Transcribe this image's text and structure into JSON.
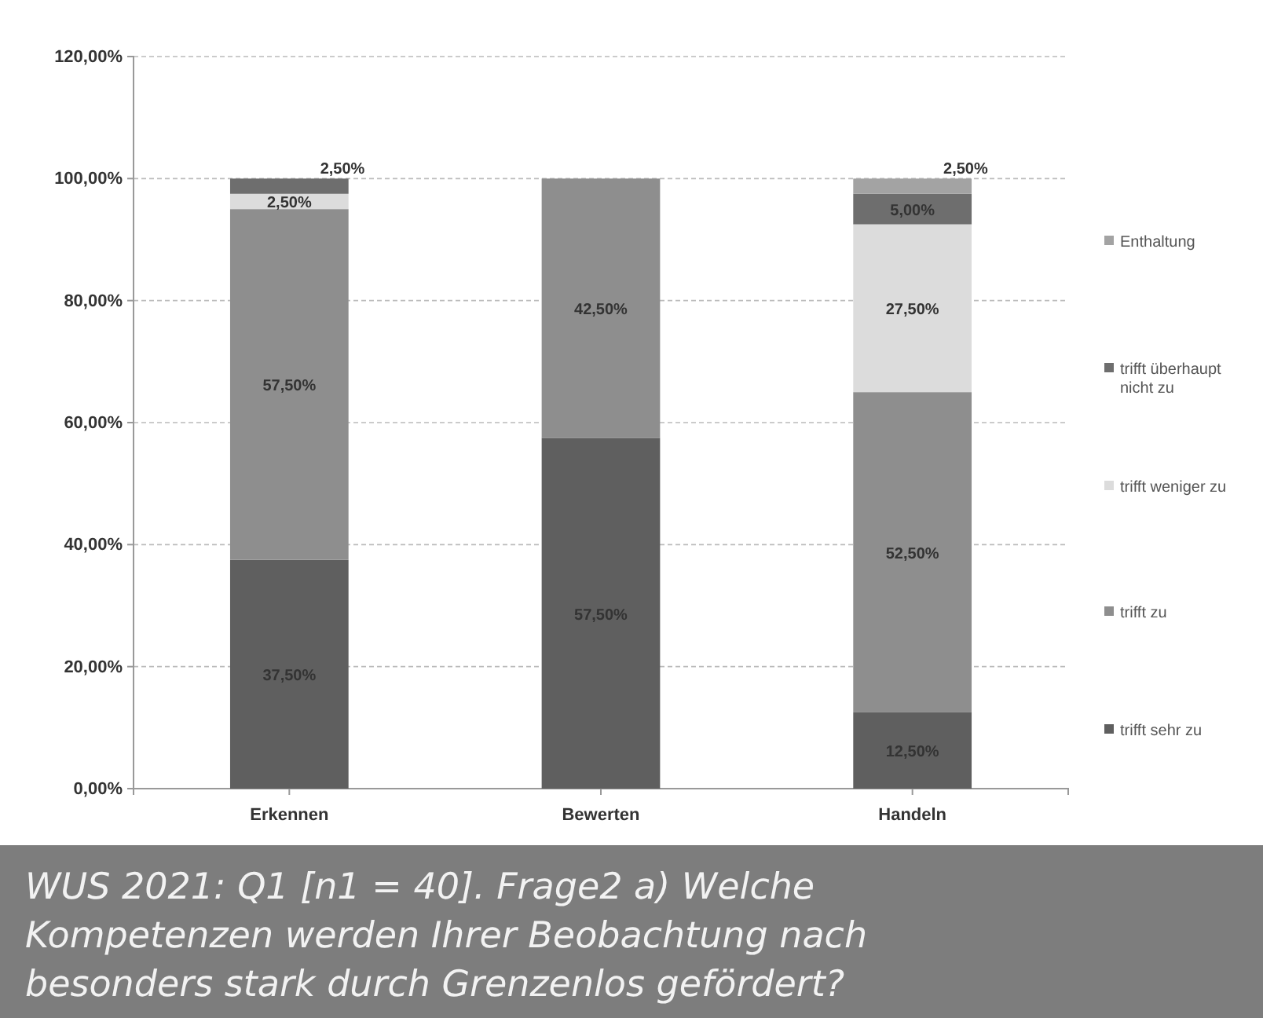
{
  "chart_data": {
    "type": "bar",
    "stacked": true,
    "categories": [
      "Erkennen",
      "Bewerten",
      "Handeln"
    ],
    "series": [
      {
        "name": "trifft sehr zu",
        "color": "#5f5f5f",
        "values": [
          37.5,
          57.5,
          12.5
        ],
        "value_labels": [
          "37,50%",
          "57,50%",
          "12,50%"
        ]
      },
      {
        "name": "trifft zu",
        "color": "#8e8e8e",
        "values": [
          57.5,
          42.5,
          52.5
        ],
        "value_labels": [
          "57,50%",
          "42,50%",
          "52,50%"
        ]
      },
      {
        "name": "trifft weniger zu",
        "color": "#dcdcdc",
        "values": [
          2.5,
          0,
          27.5
        ],
        "value_labels": [
          "2,50%",
          null,
          "27,50%"
        ]
      },
      {
        "name": "trifft überhaupt nicht zu",
        "color": "#6e6e6e",
        "values": [
          2.5,
          0,
          5
        ],
        "value_labels": [
          "2,50%",
          null,
          "5,00%"
        ]
      },
      {
        "name": "Enthaltung",
        "color": "#a3a3a3",
        "values": [
          0,
          0,
          2.5
        ],
        "value_labels": [
          null,
          null,
          "2,50%"
        ]
      }
    ],
    "ylim": [
      0,
      120
    ],
    "yticks": [
      {
        "value": 0,
        "label": "0,00%"
      },
      {
        "value": 20,
        "label": "20,00%"
      },
      {
        "value": 40,
        "label": "40,00%"
      },
      {
        "value": 60,
        "label": "60,00%"
      },
      {
        "value": 80,
        "label": "80,00%"
      },
      {
        "value": 100,
        "label": "100,00%"
      },
      {
        "value": 120,
        "label": "120,00%"
      }
    ],
    "grid": "y",
    "legend": "right",
    "annotations": [
      "WUS 2021: Q1 [n1 = 40]. Frage2 a) Welche Kompetenzen werden Ihrer Beobachtung nach besonders stark durch Grenzenlos gefördert?"
    ]
  }
}
